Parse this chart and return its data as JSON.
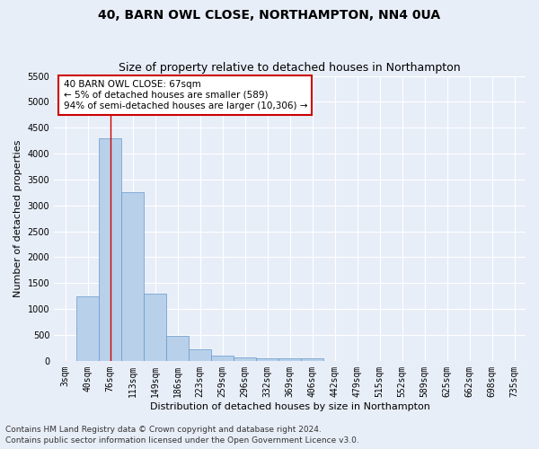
{
  "title": "40, BARN OWL CLOSE, NORTHAMPTON, NN4 0UA",
  "subtitle": "Size of property relative to detached houses in Northampton",
  "xlabel": "Distribution of detached houses by size in Northampton",
  "ylabel": "Number of detached properties",
  "categories": [
    "3sqm",
    "40sqm",
    "76sqm",
    "113sqm",
    "149sqm",
    "186sqm",
    "223sqm",
    "259sqm",
    "296sqm",
    "332sqm",
    "369sqm",
    "406sqm",
    "442sqm",
    "479sqm",
    "515sqm",
    "552sqm",
    "589sqm",
    "625sqm",
    "662sqm",
    "698sqm",
    "735sqm"
  ],
  "values": [
    0,
    1250,
    4300,
    3250,
    1300,
    480,
    220,
    100,
    75,
    55,
    50,
    50,
    0,
    0,
    0,
    0,
    0,
    0,
    0,
    0,
    0
  ],
  "bar_color": "#b8d0ea",
  "bar_edge_color": "#6699cc",
  "property_line_label": "40 BARN OWL CLOSE: 67sqm",
  "annotation_line1": "← 5% of detached houses are smaller (589)",
  "annotation_line2": "94% of semi-detached houses are larger (10,306) →",
  "ylim": [
    0,
    5500
  ],
  "yticks": [
    0,
    500,
    1000,
    1500,
    2000,
    2500,
    3000,
    3500,
    4000,
    4500,
    5000,
    5500
  ],
  "footer_line1": "Contains HM Land Registry data © Crown copyright and database right 2024.",
  "footer_line2": "Contains public sector information licensed under the Open Government Licence v3.0.",
  "bg_color": "#e8eef8",
  "plot_bg_color": "#e8eef8",
  "grid_color": "#ffffff",
  "annotation_box_color": "#ffffff",
  "annotation_box_edge_color": "#cc0000",
  "property_line_color": "#cc0000",
  "title_fontsize": 10,
  "subtitle_fontsize": 9,
  "axis_label_fontsize": 8,
  "tick_fontsize": 7,
  "annotation_fontsize": 7.5,
  "footer_fontsize": 6.5
}
